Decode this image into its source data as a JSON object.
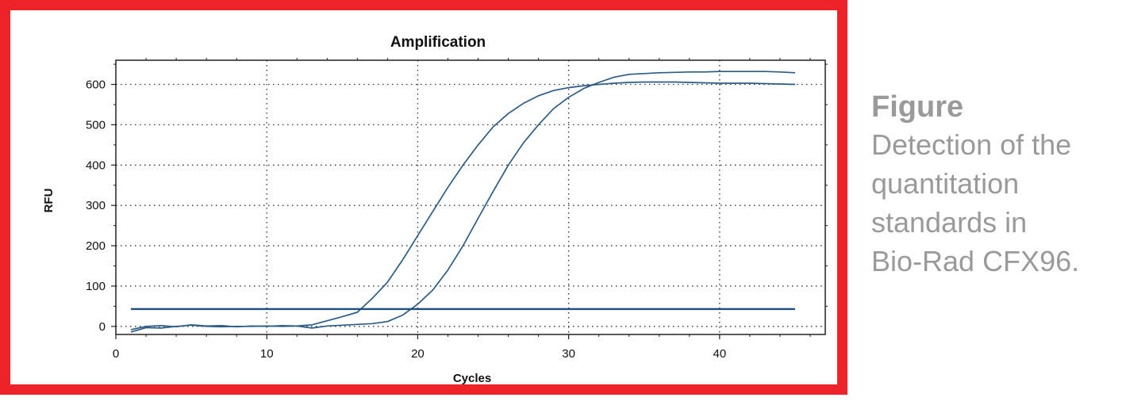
{
  "chart_data": {
    "type": "line",
    "title": "Amplification",
    "xlabel": "Cycles",
    "ylabel": "RFU",
    "xlim": [
      0,
      47
    ],
    "ylim": [
      -20,
      660
    ],
    "xticks": [
      0,
      10,
      20,
      30,
      40
    ],
    "yticks": [
      0,
      100,
      200,
      300,
      400,
      500,
      600
    ],
    "grid": "dotted",
    "threshold": 43,
    "colors": {
      "line": "#2b5b87",
      "threshold": "#1c4f7f",
      "frame": "#ee2229"
    },
    "series": [
      {
        "x": [
          1,
          2,
          3,
          4,
          5,
          6,
          7,
          8,
          9,
          10,
          11,
          12,
          13,
          14,
          15,
          16,
          17,
          18,
          19,
          20,
          21,
          22,
          23,
          24,
          25,
          26,
          27,
          28,
          29,
          30,
          31,
          32,
          33,
          34,
          35,
          36,
          37,
          38,
          39,
          40,
          41,
          42,
          43,
          44,
          45
        ],
        "values": [
          -8,
          0,
          2,
          -1,
          4,
          1,
          2,
          -1,
          1,
          0,
          2,
          1,
          4,
          14,
          24,
          35,
          70,
          110,
          165,
          225,
          285,
          345,
          400,
          450,
          495,
          528,
          553,
          572,
          585,
          592,
          597,
          600,
          603,
          605,
          606,
          606,
          606,
          605,
          604,
          603,
          603,
          603,
          602,
          601,
          600
        ]
      },
      {
        "x": [
          1,
          2,
          3,
          4,
          5,
          6,
          7,
          8,
          9,
          10,
          11,
          12,
          13,
          14,
          15,
          16,
          17,
          18,
          19,
          20,
          21,
          22,
          23,
          24,
          25,
          26,
          27,
          28,
          29,
          30,
          31,
          32,
          33,
          34,
          35,
          36,
          37,
          38,
          39,
          40,
          41,
          42,
          43,
          44,
          45
        ],
        "values": [
          -14,
          -3,
          -4,
          0,
          3,
          0,
          -1,
          0,
          0,
          1,
          0,
          1,
          -4,
          1,
          3,
          5,
          7,
          12,
          28,
          55,
          90,
          140,
          200,
          268,
          335,
          400,
          455,
          500,
          540,
          568,
          590,
          605,
          618,
          625,
          627,
          629,
          630,
          631,
          631,
          632,
          632,
          632,
          632,
          631,
          629
        ]
      }
    ]
  },
  "caption": {
    "title": "Figure",
    "lines": [
      "Detection of the",
      "quantitation",
      "standards in",
      "Bio-Rad CFX96."
    ]
  }
}
